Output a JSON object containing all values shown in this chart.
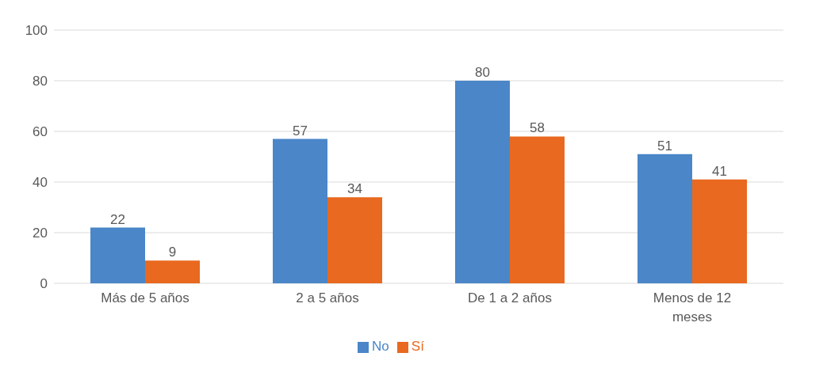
{
  "chart_data": {
    "type": "bar",
    "categories": [
      "Más de 5 años",
      "2 a 5 años",
      "De 1 a 2 años",
      "Menos de 12 meses"
    ],
    "series": [
      {
        "name": "No",
        "color": "#4a86c8",
        "values": [
          22,
          57,
          80,
          51
        ]
      },
      {
        "name": "Sí",
        "color": "#e8691f",
        "values": [
          9,
          34,
          58,
          41
        ]
      }
    ],
    "ylim": [
      0,
      100
    ],
    "yticks": [
      0,
      20,
      40,
      60,
      80,
      100
    ],
    "grid": "y",
    "legend": "bottom",
    "data_labels": true
  }
}
